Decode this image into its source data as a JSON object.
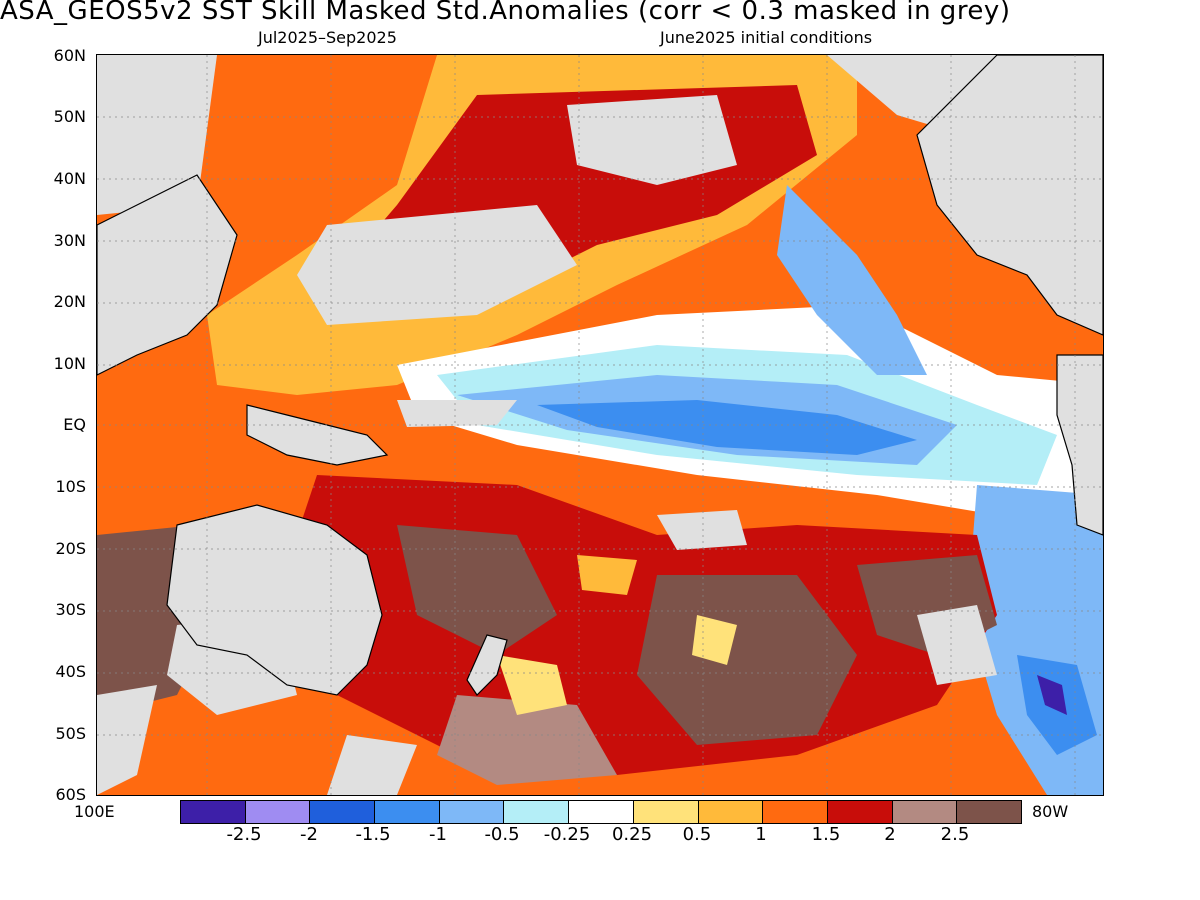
{
  "title": "ASA_GEOS5v2   SST Skill Masked Std.Anomalies (corr < 0.3 masked in grey)",
  "subtitle_left": "Jul2025–Sep2025",
  "subtitle_right": "June2025 initial conditions",
  "lat_labels": [
    "60N",
    "50N",
    "40N",
    "30N",
    "20N",
    "10N",
    "EQ",
    "10S",
    "20S",
    "30S",
    "40S",
    "50S",
    "60S"
  ],
  "lon_labels": {
    "west": "100E",
    "east": "80W"
  },
  "colorbar": {
    "colors": [
      "#3d1fa8",
      "#9f8cf2",
      "#1f5fdc",
      "#3c8ef0",
      "#7eb8f7",
      "#b4eef7",
      "#ffffff",
      "#ffe27a",
      "#ffba3a",
      "#ff6a10",
      "#c80d0a",
      "#b38a82",
      "#7d534a"
    ],
    "tick_labels": [
      "-2.5",
      "-2",
      "-1.5",
      "-1",
      "-0.5",
      "-0.25",
      "0.25",
      "0.5",
      "1",
      "1.5",
      "2",
      "2.5"
    ]
  },
  "mask_color": "#e0e0e0"
}
